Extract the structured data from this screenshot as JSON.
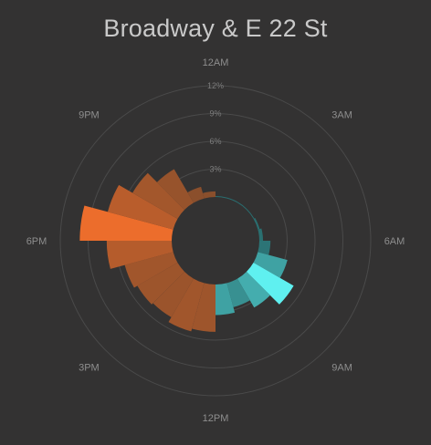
{
  "chart_data": {
    "type": "polar-bar",
    "title": "Broadway & E 22 St",
    "radial_ticks": [
      "3%",
      "6%",
      "9%",
      "12%"
    ],
    "radial_tick_values": [
      3,
      6,
      9,
      12
    ],
    "radial_max": 12,
    "hour_labels": [
      "12AM",
      "3AM",
      "6AM",
      "9AM",
      "12PM",
      "3PM",
      "6PM",
      "9PM"
    ],
    "hours": [
      0,
      1,
      2,
      3,
      4,
      5,
      6,
      7,
      8,
      9,
      10,
      11,
      12,
      13,
      14,
      15,
      16,
      17,
      18,
      19,
      20,
      21,
      22,
      23
    ],
    "values": [
      0.1,
      0.1,
      0.1,
      0.1,
      0.2,
      0.4,
      1.2,
      3.3,
      5.0,
      3.6,
      2.7,
      3.3,
      5.1,
      5.4,
      4.8,
      5.0,
      5.4,
      7.0,
      9.9,
      7.3,
      5.6,
      4.2,
      1.3,
      0.6
    ],
    "colors": {
      "morning_base": "#2a6e70",
      "morning_peak": "#5ff0f0",
      "evening_base": "#8a4f2c",
      "evening_peak": "#ec6d2c",
      "grid": "#4a4a4a"
    }
  }
}
